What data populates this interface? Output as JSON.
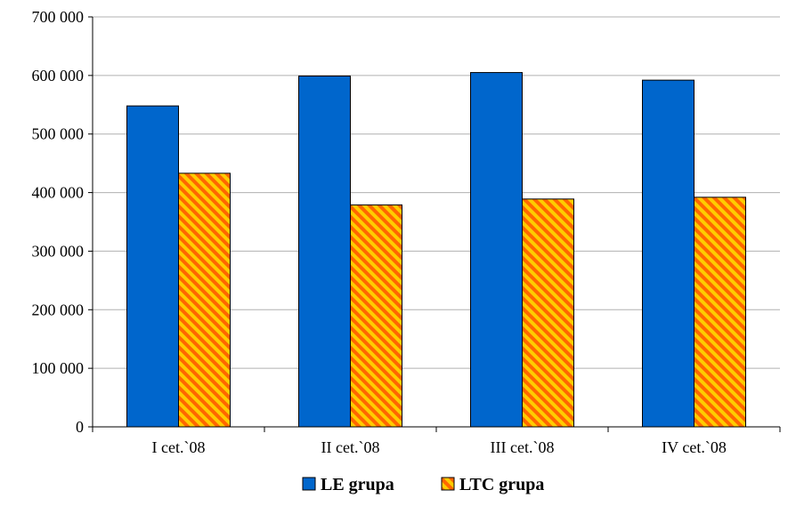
{
  "chart_data": {
    "type": "bar",
    "categories": [
      "I cet.`08",
      "II cet.`08",
      "III cet.`08",
      "IV cet.`08"
    ],
    "series": [
      {
        "name": "LE grupa",
        "values": [
          548000,
          599000,
          605000,
          592000
        ],
        "color": "#0066CC",
        "pattern": "solid"
      },
      {
        "name": "LTC grupa",
        "values": [
          433000,
          379000,
          389000,
          392000
        ],
        "color": "#FFCC00",
        "pattern": "diagonal-stripes",
        "stripe_color": "#FF6600"
      }
    ],
    "ylim": [
      0,
      700000
    ],
    "yticks": [
      0,
      100000,
      200000,
      300000,
      400000,
      500000,
      600000,
      700000
    ],
    "ytick_labels": [
      "0",
      "100 000",
      "200 000",
      "300 000",
      "400 000",
      "500 000",
      "600 000",
      "700 000"
    ],
    "grid": true,
    "legend_position": "bottom"
  }
}
